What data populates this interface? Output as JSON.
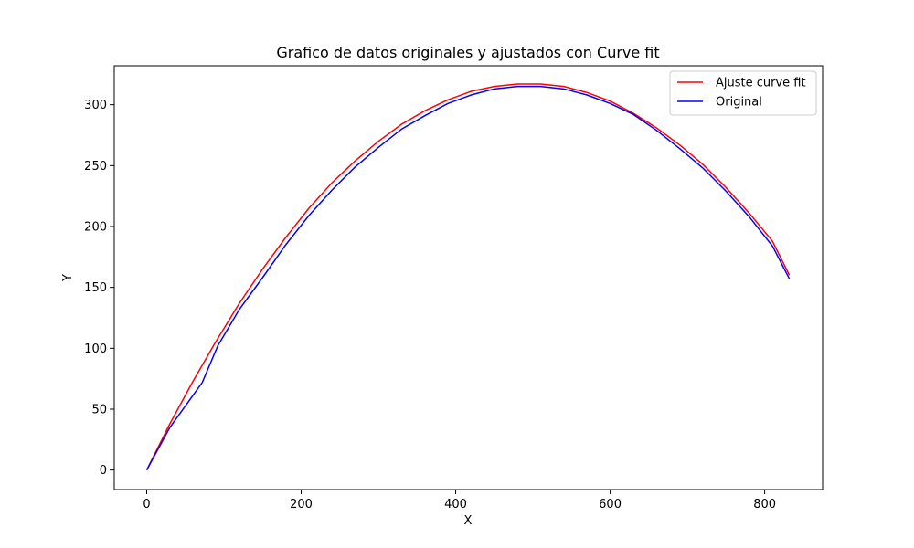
{
  "chart_data": {
    "type": "line",
    "title": "Grafico de datos originales y ajustados con Curve fit",
    "xlabel": "X",
    "ylabel": "Y",
    "xlim": [
      -42,
      875
    ],
    "ylim": [
      -16,
      332
    ],
    "xticks": [
      0,
      200,
      400,
      600,
      800
    ],
    "yticks": [
      0,
      50,
      100,
      150,
      200,
      250,
      300
    ],
    "grid": false,
    "legend_position": "upper right",
    "series": [
      {
        "name": "Ajuste curve fit",
        "color": "#ff0000",
        "x": [
          0,
          30,
          60,
          90,
          120,
          150,
          180,
          210,
          240,
          270,
          300,
          330,
          360,
          390,
          420,
          450,
          480,
          510,
          540,
          570,
          600,
          630,
          660,
          690,
          720,
          750,
          780,
          810,
          832
        ],
        "y": [
          0,
          38,
          73,
          106,
          137,
          165,
          191,
          215,
          236,
          254,
          270,
          284,
          295,
          304,
          311,
          315,
          317,
          317,
          315,
          310,
          303,
          293,
          281,
          267,
          251,
          232,
          211,
          188,
          160
        ]
      },
      {
        "name": "Original",
        "color": "#0000ff",
        "x": [
          0,
          30,
          72,
          92,
          120,
          150,
          180,
          210,
          240,
          270,
          300,
          330,
          360,
          390,
          420,
          450,
          480,
          510,
          540,
          570,
          600,
          630,
          660,
          690,
          720,
          750,
          780,
          810,
          832
        ],
        "y": [
          0,
          35,
          72,
          102,
          132,
          158,
          185,
          209,
          230,
          249,
          265,
          280,
          291,
          301,
          308,
          313,
          315,
          315,
          313,
          308,
          301,
          292,
          279,
          264,
          248,
          229,
          208,
          184,
          157
        ]
      }
    ]
  }
}
